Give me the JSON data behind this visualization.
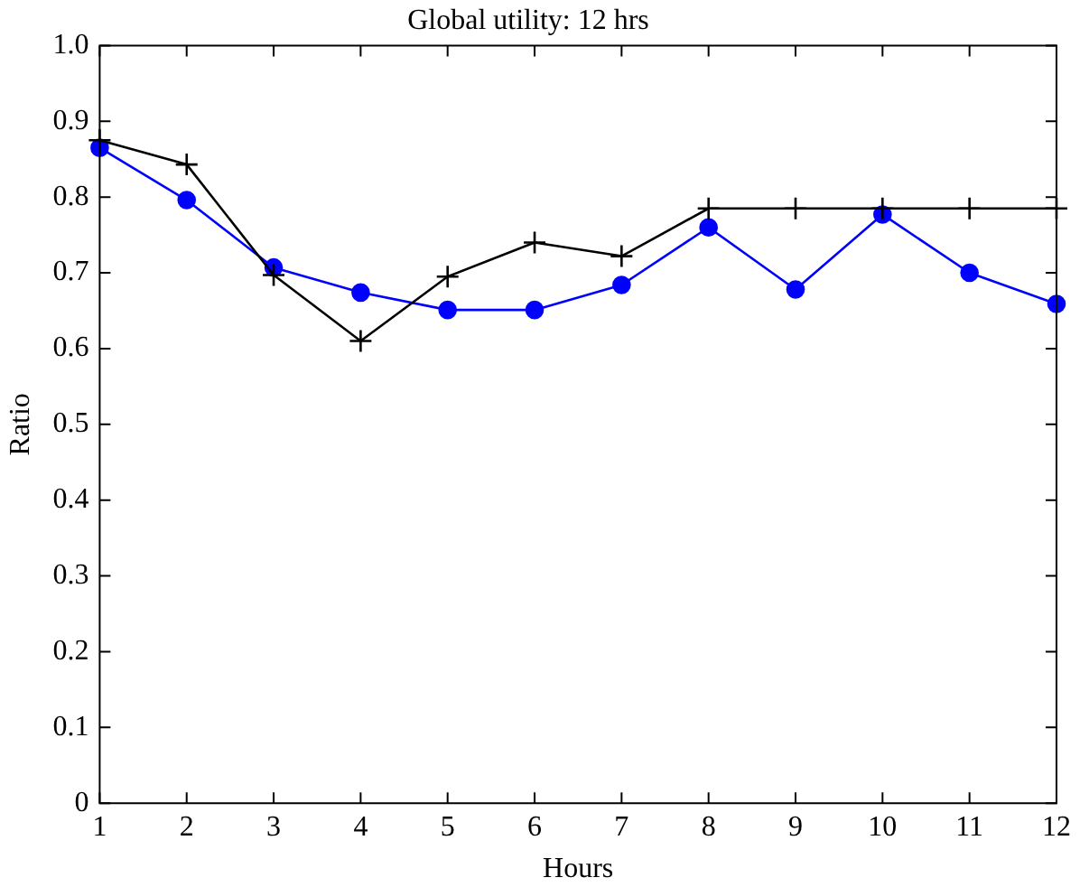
{
  "chart_data": {
    "type": "line",
    "title": "Global utility: 12 hrs",
    "xlabel": "Hours",
    "ylabel": "Ratio",
    "x": [
      1,
      2,
      3,
      4,
      5,
      6,
      7,
      8,
      9,
      10,
      11,
      12
    ],
    "series": [
      {
        "color": "#000000",
        "marker": "cross",
        "values": [
          0.875,
          0.843,
          0.697,
          0.61,
          0.695,
          0.74,
          0.722,
          0.785,
          0.785,
          0.785,
          0.785,
          0.785
        ]
      },
      {
        "color": "#0000ff",
        "marker": "circle",
        "values": [
          0.865,
          0.796,
          0.707,
          0.674,
          0.651,
          0.651,
          0.684,
          0.76,
          0.678,
          0.777,
          0.7,
          0.659
        ]
      }
    ],
    "xlim": [
      1,
      12
    ],
    "xticks": [
      1,
      2,
      3,
      4,
      5,
      6,
      7,
      8,
      9,
      10,
      11,
      12
    ],
    "ylim": [
      0,
      1
    ],
    "yticks": [
      0,
      0.1,
      0.2,
      0.3,
      0.4,
      0.5,
      0.6,
      0.7,
      0.8,
      0.9,
      {
        "value": 1,
        "label": "1.0"
      }
    ],
    "grid": false,
    "legend": false
  }
}
